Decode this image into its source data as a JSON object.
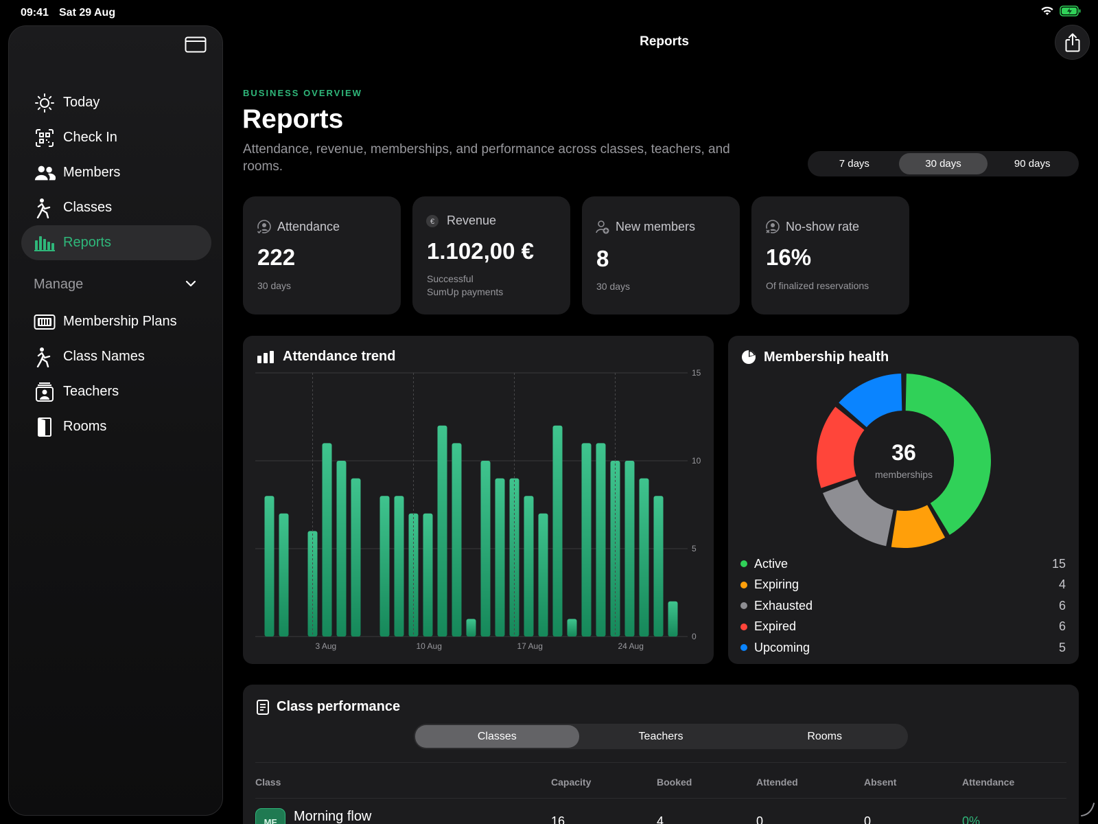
{
  "status": {
    "time": "09:41",
    "date": "Sat 29 Aug"
  },
  "sidebar": {
    "items": [
      {
        "label": "Today",
        "icon": "sun-icon"
      },
      {
        "label": "Check In",
        "icon": "qr-scan-icon"
      },
      {
        "label": "Members",
        "icon": "people-icon"
      },
      {
        "label": "Classes",
        "icon": "figure-icon"
      },
      {
        "label": "Reports",
        "icon": "bar-chart-icon",
        "active": true
      }
    ],
    "section": "Manage",
    "manage_items": [
      {
        "label": "Membership Plans",
        "icon": "ticket-icon"
      },
      {
        "label": "Class Names",
        "icon": "figure-icon"
      },
      {
        "label": "Teachers",
        "icon": "teacher-badge-icon"
      },
      {
        "label": "Rooms",
        "icon": "door-icon"
      }
    ]
  },
  "header": {
    "title": "Reports"
  },
  "page": {
    "eyebrow": "BUSINESS OVERVIEW",
    "title": "Reports",
    "subtitle": "Attendance, revenue, memberships, and performance across classes, teachers, and rooms."
  },
  "range": {
    "options": [
      "7 days",
      "30 days",
      "90 days"
    ],
    "selected": "30 days"
  },
  "kpis": [
    {
      "label": "Attendance",
      "value": "222",
      "note": "30 days",
      "icon": "person-check-icon"
    },
    {
      "label": "Revenue",
      "value": "1.102,00 €",
      "note": "Successful\nSumUp payments",
      "icon": "euro-icon"
    },
    {
      "label": "New members",
      "value": "8",
      "note": "30 days",
      "icon": "person-add-icon"
    },
    {
      "label": "No-show rate",
      "value": "16%",
      "note": "Of finalized reservations",
      "icon": "person-x-icon"
    }
  ],
  "attendance_panel": {
    "title": "Attendance trend"
  },
  "membership_panel": {
    "title": "Membership health",
    "total": "36",
    "total_label": "memberships"
  },
  "chart_data": [
    {
      "type": "bar",
      "title": "Attendance trend",
      "categories": [
        "31 Jul",
        "1 Aug",
        "2 Aug",
        "3 Aug",
        "4 Aug",
        "5 Aug",
        "6 Aug",
        "7 Aug",
        "8 Aug",
        "9 Aug",
        "10 Aug",
        "11 Aug",
        "12 Aug",
        "13 Aug",
        "14 Aug",
        "15 Aug",
        "16 Aug",
        "17 Aug",
        "18 Aug",
        "19 Aug",
        "20 Aug",
        "21 Aug",
        "22 Aug",
        "23 Aug",
        "24 Aug",
        "25 Aug",
        "26 Aug",
        "27 Aug",
        "28 Aug",
        "29 Aug"
      ],
      "values": [
        8,
        7,
        0,
        6,
        11,
        10,
        9,
        0,
        8,
        8,
        7,
        7,
        12,
        11,
        1,
        10,
        9,
        9,
        8,
        7,
        12,
        1,
        11,
        11,
        10,
        10,
        9,
        8,
        2,
        0
      ],
      "x_ticks": [
        "3 Aug",
        "10 Aug",
        "17 Aug",
        "24 Aug"
      ],
      "y_ticks": [
        0,
        5,
        10,
        15
      ],
      "ylim": [
        0,
        15
      ],
      "grid": true,
      "color": "#2fb77a"
    },
    {
      "type": "pie",
      "title": "Membership health",
      "labels": [
        "Active",
        "Expiring",
        "Exhausted",
        "Expired",
        "Upcoming"
      ],
      "values": [
        15,
        4,
        6,
        6,
        5
      ],
      "colors": [
        "#30d158",
        "#ff9f0a",
        "#8e8e93",
        "#ff453a",
        "#0a84ff"
      ]
    }
  ],
  "legend": [
    {
      "name": "Active",
      "value": "15",
      "color": "#30d158"
    },
    {
      "name": "Expiring",
      "value": "4",
      "color": "#ff9f0a"
    },
    {
      "name": "Exhausted",
      "value": "6",
      "color": "#8e8e93"
    },
    {
      "name": "Expired",
      "value": "6",
      "color": "#ff453a"
    },
    {
      "name": "Upcoming",
      "value": "5",
      "color": "#0a84ff"
    }
  ],
  "performance": {
    "title": "Class performance",
    "tabs": [
      "Classes",
      "Teachers",
      "Rooms"
    ],
    "selected_tab": "Classes",
    "columns": [
      "Class",
      "Capacity",
      "Booked",
      "Attended",
      "Absent",
      "Attendance"
    ],
    "rows": [
      {
        "badge": "MF",
        "name": "Morning flow",
        "capacity": "16",
        "booked": "4",
        "attended": "0",
        "absent": "0",
        "attendance": "0%"
      }
    ]
  },
  "colors": {
    "accent": "#2fb77a",
    "background": "#000000",
    "card": "#1c1c1e"
  }
}
